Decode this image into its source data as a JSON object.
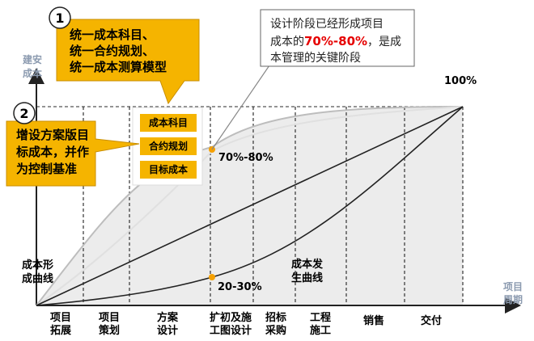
{
  "axes": {
    "y_label_line1": "建安",
    "y_label_line2": "成本",
    "x_label_line1": "项目",
    "x_label_line2": "周期",
    "max_label": "100%"
  },
  "phases": [
    {
      "line1": "项目",
      "line2": "拓展"
    },
    {
      "line1": "项目",
      "line2": "策划"
    },
    {
      "line1": "方案",
      "line2": "设计"
    },
    {
      "line1": "扩初及施",
      "line2": "工图设计"
    },
    {
      "line1": "招标",
      "line2": "采购"
    },
    {
      "line1": "工程",
      "line2": "施工"
    },
    {
      "line1": "销售",
      "line2": ""
    },
    {
      "line1": "交付",
      "line2": ""
    }
  ],
  "curves": {
    "formation_line1": "成本形",
    "formation_line2": "成曲线",
    "occurrence_line1": "成本发",
    "occurrence_line2": "生曲线",
    "value_high": "70%-80%",
    "value_low": "20-30%"
  },
  "callout1": {
    "number": "1",
    "line1": "统一成本科目、",
    "line2": "统一合约规划、",
    "line3": "统一成本测算模型"
  },
  "callout2": {
    "number": "2",
    "line1": "增设方案版目",
    "line2": "标成本，并作",
    "line3": "为控制基准"
  },
  "boxes": [
    "成本科目",
    "合约规划",
    "目标成本"
  ],
  "note": {
    "line1": "设计阶段已经形成项目",
    "line2_pre": "成本的",
    "line2_red": "70%-80%",
    "line2_post": "，是成",
    "line3": "本管理的关键阶段"
  },
  "colors": {
    "accent_orange": "#f5a000",
    "callout_fill": "#f5b400",
    "highlight_red": "#e60000",
    "axis_label": "#8c9bb0"
  }
}
